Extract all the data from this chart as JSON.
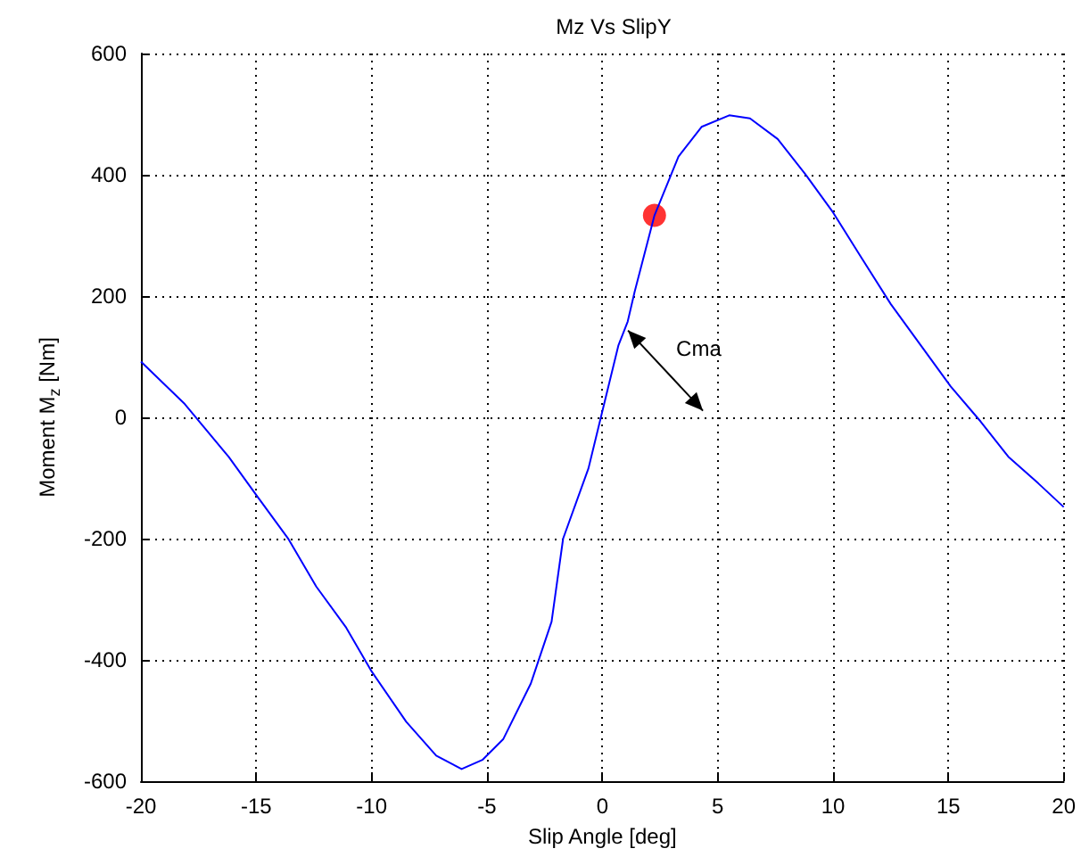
{
  "chart_data": {
    "type": "line",
    "title": "Mz Vs SlipY",
    "xlabel": "Slip Angle [deg]",
    "ylabel": "Moment M$_{z}$ [Nm]",
    "xlim": [
      -20,
      20
    ],
    "xticks": [
      -20,
      -15,
      -10,
      -5,
      0,
      5,
      10,
      15,
      20
    ],
    "ylim": [
      -600,
      600
    ],
    "yticks": [
      -600,
      -400,
      -200,
      0,
      200,
      400,
      600
    ],
    "grid": true,
    "annotations": [
      "Cma"
    ],
    "series": [
      {
        "color": "#0000ff",
        "x": [
          -20,
          -18.1,
          -16.2,
          -15,
          -13.6,
          -12.4,
          -11.1,
          -10,
          -8.5,
          -7.2,
          -6.1,
          -5.2,
          -4.3,
          -3.1,
          -2.2,
          -1.7,
          -0.6,
          0,
          0.7,
          1.1,
          1.4,
          2.26,
          3.3,
          4.3,
          5.5,
          6.4,
          7.6,
          8.8,
          10,
          11.2,
          12.5,
          13.8,
          15.1,
          16.4,
          17.6,
          18.9,
          20
        ],
        "values": [
          92,
          22,
          -65,
          -128,
          -201,
          -279,
          -347,
          -419,
          -502,
          -558,
          -580,
          -565,
          -531,
          -439,
          -337,
          -200,
          -84,
          10,
          119,
          158,
          207,
          333,
          430,
          479,
          498,
          493,
          459,
          401,
          338,
          265,
          187,
          119,
          51,
          -7,
          -65,
          -109,
          -148
        ]
      },
      {
        "type": "scatter",
        "color": "#ff0000",
        "marker": "circle",
        "x": [
          2.26
        ],
        "values": [
          333
        ]
      }
    ]
  }
}
